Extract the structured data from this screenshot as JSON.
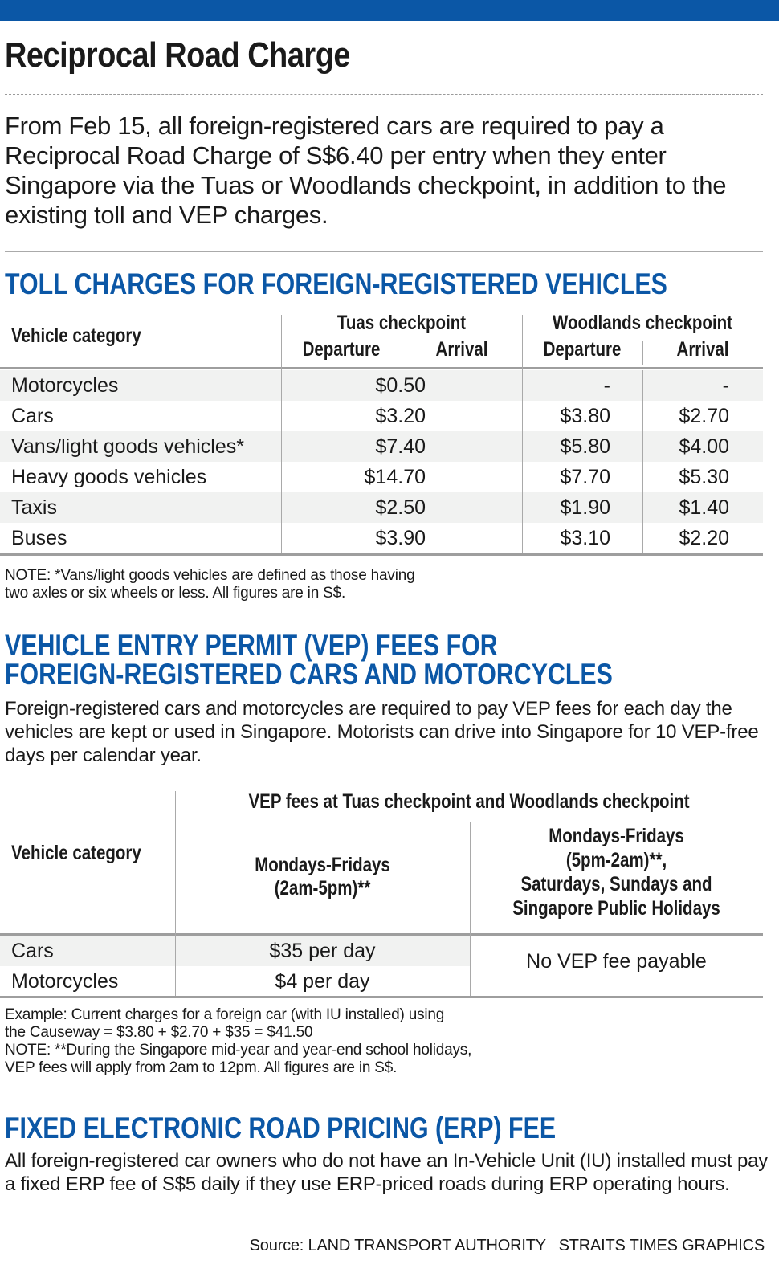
{
  "brand_color": "#0b57a6",
  "title": "Reciprocal Road Charge",
  "intro": "From Feb 15, all foreign-registered cars are required to pay a Reciprocal Road Charge of S$6.40 per entry when they enter Singapore via the Tuas or Woodlands checkpoint, in addition to the existing toll and VEP charges.",
  "toll": {
    "heading": "TOLL CHARGES FOR FOREIGN-REGISTERED VEHICLES",
    "col_category": "Vehicle category",
    "tuas": "Tuas checkpoint",
    "woodlands": "Woodlands checkpoint",
    "departure": "Departure",
    "arrival": "Arrival",
    "rows": [
      {
        "category": "Motorcycles",
        "tuas": "$0.50",
        "wl_dep": "-",
        "wl_arr": "-"
      },
      {
        "category": "Cars",
        "tuas": "$3.20",
        "wl_dep": "$3.80",
        "wl_arr": "$2.70"
      },
      {
        "category": "Vans/light goods vehicles*",
        "tuas": "$7.40",
        "wl_dep": "$5.80",
        "wl_arr": "$4.00"
      },
      {
        "category": "Heavy goods vehicles",
        "tuas": "$14.70",
        "wl_dep": "$7.70",
        "wl_arr": "$5.30"
      },
      {
        "category": "Taxis",
        "tuas": "$2.50",
        "wl_dep": "$1.90",
        "wl_arr": "$1.40"
      },
      {
        "category": "Buses",
        "tuas": "$3.90",
        "wl_dep": "$3.10",
        "wl_arr": "$2.20"
      }
    ],
    "note_line1": "NOTE: *Vans/light goods vehicles are defined as those having",
    "note_line2": "two axles or six wheels or less. All figures are in S$."
  },
  "vep": {
    "heading_line1": "VEHICLE ENTRY PERMIT (VEP) FEES FOR",
    "heading_line2": "FOREIGN-REGISTERED CARS AND MOTORCYCLES",
    "paragraph": "Foreign-registered cars and motorcycles are required to pay VEP fees for each day the vehicles are kept or used in Singapore. Motorists can drive into Singapore for 10 VEP-free days per calendar year.",
    "col_category": "Vehicle category",
    "group_header": "VEP fees at Tuas checkpoint and Woodlands checkpoint",
    "col_weekday_1": "Mondays-Fridays",
    "col_weekday_2": "(2am-5pm)**",
    "col_other_1": "Mondays-Fridays",
    "col_other_2": "(5pm-2am)**,",
    "col_other_3": "Saturdays, Sundays and",
    "col_other_4": "Singapore Public Holidays",
    "rows": [
      {
        "category": "Cars",
        "weekday": "$35 per day"
      },
      {
        "category": "Motorcycles",
        "weekday": "$4 per day"
      }
    ],
    "other_value": "No VEP fee payable",
    "note_line1": "Example: Current charges for a foreign car (with IU installed) using",
    "note_line2": "the Causeway = $3.80 + $2.70 + $35 = $41.50",
    "note_line3": "NOTE: **During the Singapore mid-year and year-end school holidays,",
    "note_line4": "VEP fees will apply from 2am to 12pm. All figures are in S$."
  },
  "erp": {
    "heading": "FIXED ELECTRONIC ROAD PRICING (ERP) FEE",
    "paragraph": "All foreign-registered car owners who do not have an In-Vehicle Unit (IU) installed must pay a fixed ERP fee of S$5 daily if they use ERP-priced roads during ERP operating hours."
  },
  "source": "Source: LAND TRANSPORT AUTHORITY   STRAITS TIMES GRAPHICS"
}
